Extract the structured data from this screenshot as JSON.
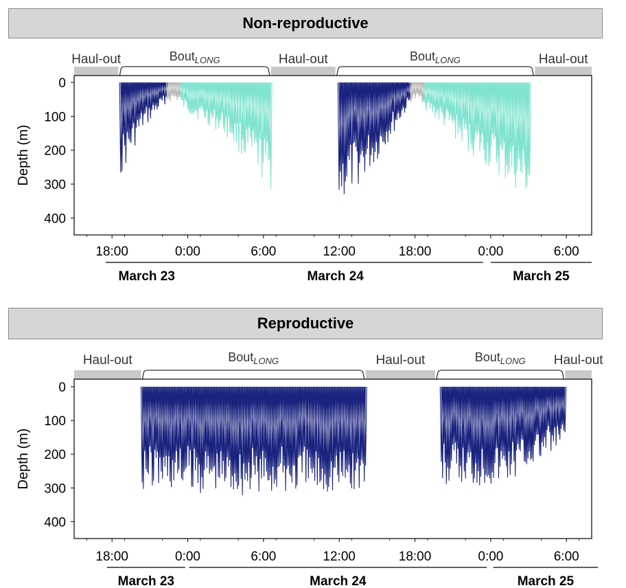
{
  "figure_style": {
    "colors": {
      "shallow_dives": "#1a237e",
      "deep_dives": "#7fe3cf",
      "transition": "#b7b7b7",
      "haul_out_band": "#c9c9c9",
      "strip_fill": "#d6d6d6"
    }
  },
  "chart_data": [
    {
      "type": "line",
      "title": "Non-reproductive",
      "ylabel": "Depth (m)",
      "y_reversed": true,
      "ylim": [
        0,
        450
      ],
      "yticks": [
        0,
        100,
        200,
        300,
        400
      ],
      "yticklabels": [
        "0",
        "100",
        "200",
        "300",
        "400"
      ],
      "x_unit": "hours since March 23 00:00",
      "xlim": [
        15,
        56
      ],
      "xticks": [
        18,
        24,
        30,
        36,
        42,
        48,
        54
      ],
      "xticklabels": [
        "18:00",
        "0:00",
        "6:00",
        "12:00",
        "18:00",
        "0:00",
        "6:00"
      ],
      "dates": [
        {
          "label": "March 23",
          "start": 17.5,
          "end": 24.0
        },
        {
          "label": "March 24",
          "start": 24.0,
          "end": 47.4
        },
        {
          "label": "March 25",
          "start": 48.0,
          "end": 56.0
        }
      ],
      "periods": [
        {
          "label": "Haul-out",
          "start": 15.0,
          "end": 18.5
        },
        {
          "label": "Bout",
          "sub": "LONG",
          "start": 18.5,
          "end": 30.6
        },
        {
          "label": "Haul-out",
          "start": 30.6,
          "end": 35.7
        },
        {
          "label": "Bout",
          "sub": "LONG",
          "start": 35.7,
          "end": 51.5
        },
        {
          "label": "Haul-out",
          "start": 51.5,
          "end": 56.0
        }
      ],
      "series": [
        {
          "dives": [
            {
              "start": 18.6,
              "end": 22.2,
              "first_depth": 280,
              "mid_depth": 140,
              "last_depth": 60,
              "color_key": "shallow_dives"
            },
            {
              "start": 22.3,
              "end": 23.3,
              "first_depth": 60,
              "mid_depth": 55,
              "last_depth": 60,
              "color_key": "transition"
            },
            {
              "start": 23.4,
              "end": 30.5,
              "first_depth": 80,
              "mid_depth": 160,
              "last_depth": 320,
              "color_key": "deep_dives"
            },
            {
              "start": 35.9,
              "end": 41.5,
              "first_depth": 365,
              "mid_depth": 250,
              "last_depth": 70,
              "color_key": "shallow_dives"
            },
            {
              "start": 41.6,
              "end": 42.6,
              "first_depth": 60,
              "mid_depth": 55,
              "last_depth": 60,
              "color_key": "transition"
            },
            {
              "start": 42.7,
              "end": 51.0,
              "first_depth": 80,
              "mid_depth": 230,
              "last_depth": 360,
              "color_key": "deep_dives"
            }
          ]
        }
      ]
    },
    {
      "type": "line",
      "title": "Reproductive",
      "ylabel": "Depth (m)",
      "y_reversed": true,
      "ylim": [
        0,
        450
      ],
      "yticks": [
        0,
        100,
        200,
        300,
        400
      ],
      "yticklabels": [
        "0",
        "100",
        "200",
        "300",
        "400"
      ],
      "x_unit": "hours since March 23 00:00",
      "xlim": [
        15,
        56
      ],
      "xticks": [
        18,
        24,
        30,
        36,
        42,
        48,
        54
      ],
      "xticklabels": [
        "18:00",
        "0:00",
        "6:00",
        "12:00",
        "18:00",
        "0:00",
        "6:00"
      ],
      "dates": [
        {
          "label": "March 23",
          "start": 17.6,
          "end": 23.8
        },
        {
          "label": "March 24",
          "start": 24.1,
          "end": 47.7
        },
        {
          "label": "March 25",
          "start": 48.2,
          "end": 56.5
        }
      ],
      "periods": [
        {
          "label": "Haul-out",
          "start": 15.0,
          "end": 20.3
        },
        {
          "label": "Bout",
          "sub": "LONG",
          "start": 20.3,
          "end": 38.1
        },
        {
          "label": "Haul-out",
          "start": 38.1,
          "end": 43.6
        },
        {
          "label": "Bout",
          "sub": "LONG",
          "start": 43.6,
          "end": 53.9
        },
        {
          "label": "Haul-out",
          "start": 53.9,
          "end": 56.0
        }
      ],
      "series": [
        {
          "dives": [
            {
              "start": 20.3,
              "end": 38.0,
              "first_depth": 305,
              "mid_depth": 325,
              "last_depth": 315,
              "color_key": "shallow_dives"
            },
            {
              "start": 44.0,
              "end": 53.8,
              "first_depth": 300,
              "mid_depth": 290,
              "last_depth": 180,
              "color_key": "shallow_dives"
            }
          ]
        }
      ]
    }
  ]
}
